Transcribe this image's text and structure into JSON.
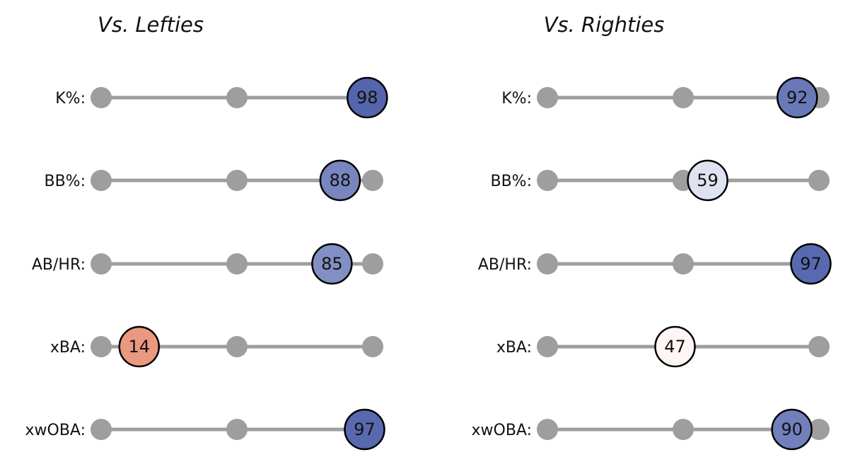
{
  "chart_data": [
    {
      "type": "dot-percentile",
      "title": "Vs. Lefties",
      "scale": [
        0,
        100
      ],
      "ticks": [
        0,
        50,
        100
      ],
      "rows": [
        {
          "label": "K%:",
          "value": 98
        },
        {
          "label": "BB%:",
          "value": 88
        },
        {
          "label": "AB/HR:",
          "value": 85
        },
        {
          "label": "xBA:",
          "value": 14
        },
        {
          "label": "xwOBA:",
          "value": 97
        }
      ]
    },
    {
      "type": "dot-percentile",
      "title": "Vs. Righties",
      "scale": [
        0,
        100
      ],
      "ticks": [
        0,
        50,
        100
      ],
      "rows": [
        {
          "label": "K%:",
          "value": 92
        },
        {
          "label": "BB%:",
          "value": 59
        },
        {
          "label": "AB/HR:",
          "value": 97
        },
        {
          "label": "xBA:",
          "value": 47
        },
        {
          "label": "xwOBA:",
          "value": 90
        }
      ]
    }
  ],
  "colors": {
    "track": "#9e9e9e",
    "low": "#e3704f",
    "mid": "#ffffff",
    "high": "#4d5fab",
    "outline": "#000000"
  }
}
